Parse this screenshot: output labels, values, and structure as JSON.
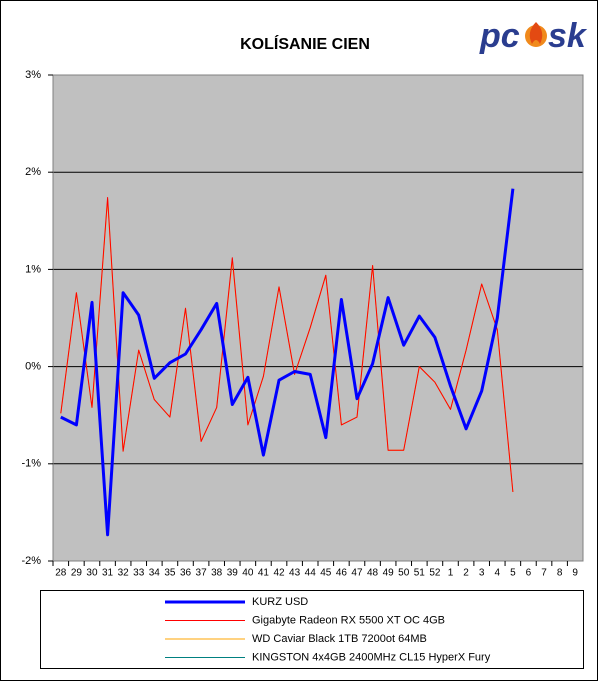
{
  "chart_data": {
    "type": "line",
    "title": "KOLÍSANIE CIEN",
    "logo": [
      "pc",
      "sk"
    ],
    "categories": [
      "28",
      "29",
      "30",
      "31",
      "32",
      "33",
      "34",
      "35",
      "36",
      "37",
      "38",
      "39",
      "40",
      "41",
      "42",
      "43",
      "44",
      "45",
      "46",
      "47",
      "48",
      "49",
      "50",
      "51",
      "52",
      "1",
      "2",
      "3",
      "4",
      "5",
      "6",
      "7",
      "8",
      "9"
    ],
    "ylim": [
      -2,
      3
    ],
    "yticks": [
      {
        "value": -2,
        "label": "-2%"
      },
      {
        "value": -1,
        "label": "-1%"
      },
      {
        "value": 0,
        "label": "0%"
      },
      {
        "value": 1,
        "label": "1%"
      },
      {
        "value": 2,
        "label": "2%"
      },
      {
        "value": 3,
        "label": "3%"
      }
    ],
    "grid": true,
    "series": [
      {
        "name": "KURZ USD",
        "color": "#0000ff",
        "width": 3,
        "values": [
          -0.52,
          -0.6,
          0.66,
          -1.73,
          0.76,
          0.53,
          -0.12,
          0.04,
          0.13,
          0.38,
          0.65,
          -0.39,
          -0.11,
          -0.91,
          -0.14,
          -0.05,
          -0.08,
          -0.73,
          0.69,
          -0.33,
          0.03,
          0.71,
          0.22,
          0.52,
          0.3,
          -0.2,
          -0.64,
          -0.25,
          0.5,
          1.83,
          null,
          null,
          null,
          null
        ]
      },
      {
        "name": "Gigabyte Radeon RX 5500 XT OC 4GB",
        "color": "#ff0000",
        "width": 1,
        "values": [
          -0.48,
          0.76,
          -0.42,
          1.74,
          -0.87,
          0.17,
          -0.34,
          -0.52,
          0.6,
          -0.77,
          -0.42,
          1.12,
          -0.6,
          -0.1,
          0.82,
          -0.08,
          0.4,
          0.94,
          -0.6,
          -0.52,
          1.04,
          -0.86,
          -0.86,
          0.0,
          -0.16,
          -0.44,
          0.17,
          0.85,
          0.38,
          -1.29,
          null,
          null,
          null,
          null
        ]
      },
      {
        "name": "WD Caviar Black 1TB 7200ot 64MB",
        "color": "#ffa500",
        "width": 1,
        "values": [
          -0.48,
          0.76,
          -0.42,
          1.72,
          -0.87,
          0.17,
          -0.34,
          -0.52,
          0.6,
          -0.77,
          -0.42,
          1.1,
          -0.6,
          -0.1,
          0.82,
          -0.08,
          0.4,
          0.94,
          -0.6,
          -0.52,
          1.04,
          -0.86,
          -0.86,
          0.0,
          -0.16,
          -0.44,
          0.17,
          0.85,
          0.38,
          -1.29,
          null,
          null,
          null,
          null
        ]
      },
      {
        "name": "KINGSTON 4x4GB 2400MHz CL15 HyperX Fury",
        "color": "#008080",
        "width": 1,
        "values": [
          null,
          null,
          null,
          null,
          null,
          null,
          null,
          null,
          null,
          null,
          null,
          null,
          null,
          null,
          null,
          null,
          null,
          null,
          null,
          null,
          null,
          null,
          null,
          null,
          null,
          null,
          null,
          null,
          null,
          null,
          null,
          null,
          null,
          null
        ]
      }
    ]
  }
}
